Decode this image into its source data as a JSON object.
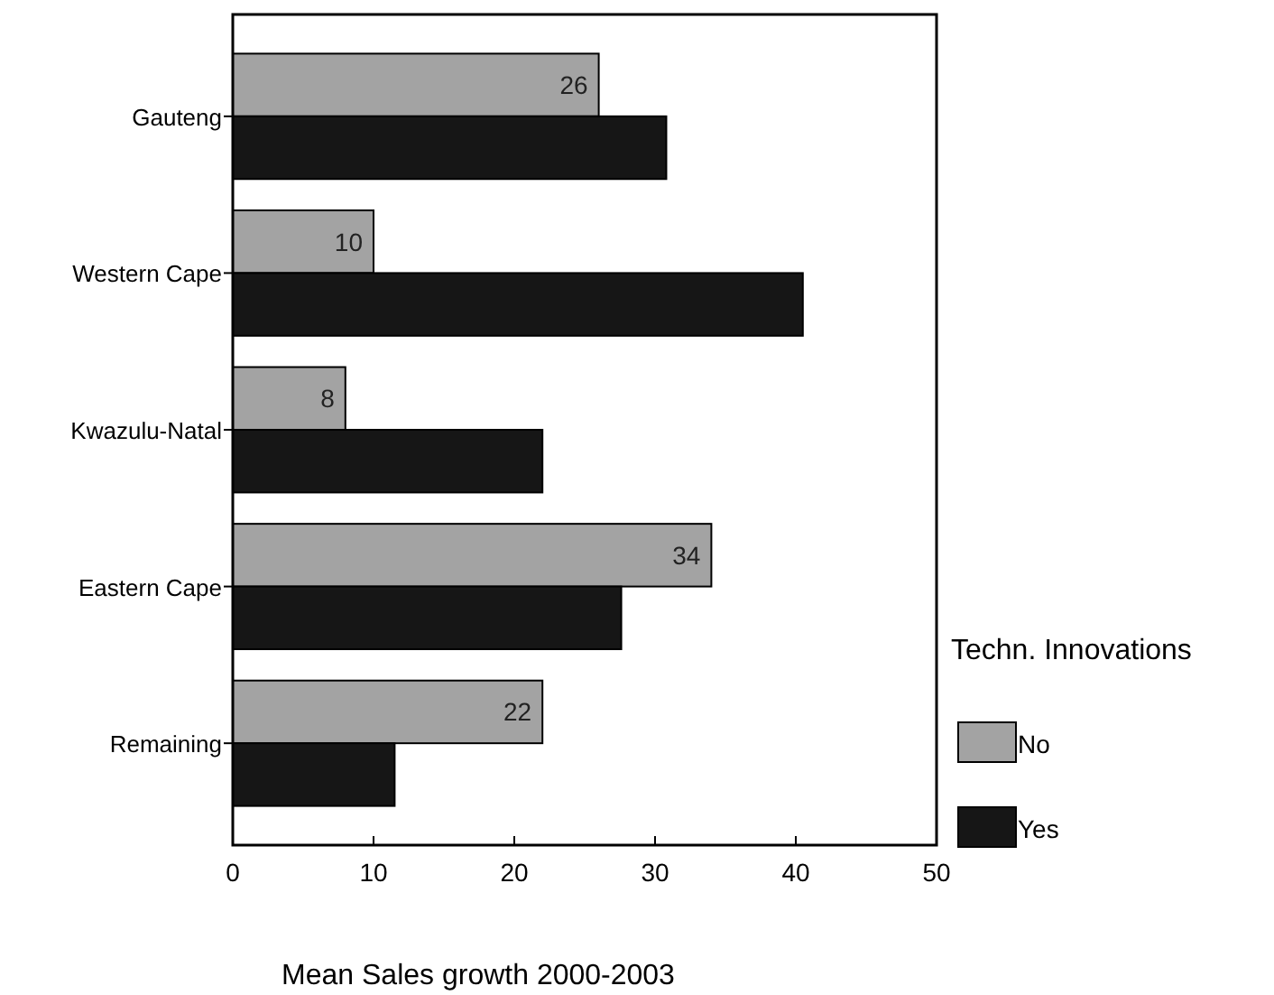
{
  "chart_data": {
    "type": "bar",
    "orientation": "horizontal",
    "xlabel": "Mean Sales growth 2000-2003",
    "legend_title": "Techn. Innovations",
    "legend": "right",
    "grid": false,
    "categories": [
      "Gauteng",
      "Western Cape",
      "Kwazulu-Natal",
      "Eastern Cape",
      "Remaining"
    ],
    "series": [
      {
        "name": "No",
        "color": "#a3a3a3",
        "values": [
          26,
          10,
          8,
          34,
          22
        ],
        "value_labels": [
          "26",
          "10",
          "8",
          "34",
          "22"
        ]
      },
      {
        "name": "Yes",
        "color": "#161616",
        "values": [
          30.8,
          40.5,
          22,
          27.6,
          11.5
        ]
      }
    ],
    "xlim": [
      0,
      50
    ],
    "xticks": [
      0,
      10,
      20,
      30,
      40,
      50
    ]
  }
}
